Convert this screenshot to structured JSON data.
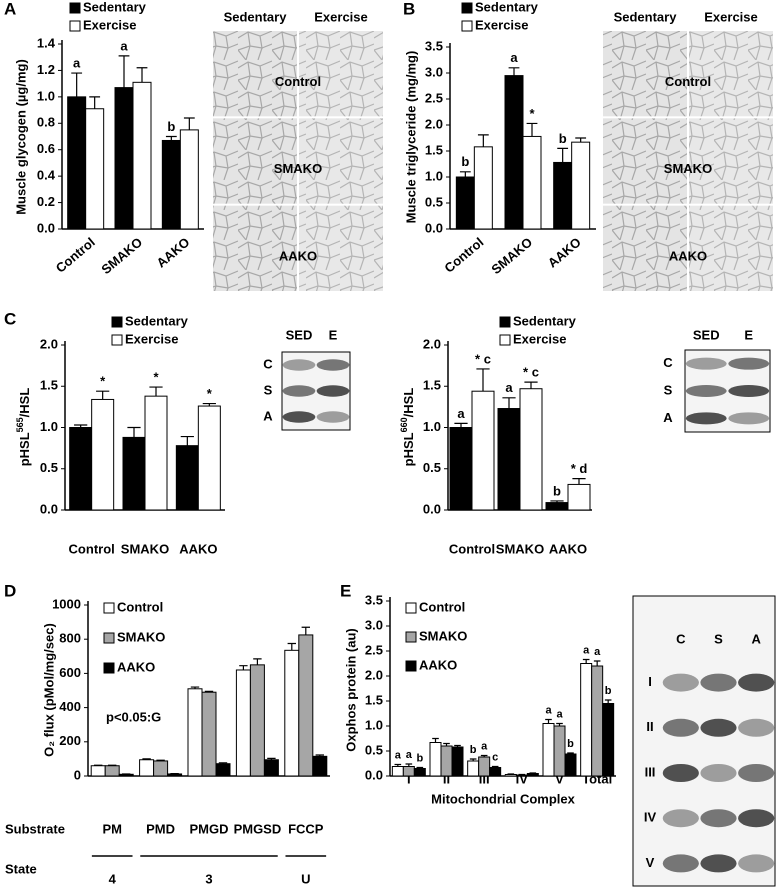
{
  "chart_data": [
    {
      "type": "bar",
      "panel": "A",
      "ylabel": "Muscle glycogen (µg/mg)",
      "categories": [
        "Control",
        "SMAKO",
        "AAKO"
      ],
      "series": [
        {
          "name": "Sedentary",
          "color": "#000000",
          "values": [
            1.0,
            1.07,
            0.67
          ],
          "errors": [
            0.18,
            0.24,
            0.03
          ],
          "annotations": [
            "a",
            "a",
            "b"
          ]
        },
        {
          "name": "Exercise",
          "color": "#ffffff",
          "values": [
            0.91,
            1.11,
            0.75
          ],
          "errors": [
            0.09,
            0.11,
            0.09
          ],
          "annotations": [
            null,
            null,
            null
          ]
        }
      ],
      "ylim": [
        0,
        1.4
      ],
      "yticks": [
        {
          "value": 0,
          "label": "0.0"
        },
        0.2,
        0.4,
        0.6,
        0.8,
        {
          "value": 1,
          "label": "1.0"
        },
        1.2,
        1.4
      ],
      "micrographs": {
        "columns": [
          "Sedentary",
          "Exercise"
        ],
        "rows": [
          "Control",
          "SMAKO",
          "AAKO"
        ]
      }
    },
    {
      "type": "bar",
      "panel": "B",
      "ylabel": "Muscle triglyceride (mg/mg)",
      "categories": [
        "Control",
        "SMAKO",
        "AAKO"
      ],
      "series": [
        {
          "name": "Sedentary",
          "color": "#000000",
          "values": [
            1.0,
            2.95,
            1.28
          ],
          "errors": [
            0.1,
            0.15,
            0.27
          ],
          "annotations": [
            "b",
            "a",
            "b"
          ]
        },
        {
          "name": "Exercise",
          "color": "#ffffff",
          "values": [
            1.58,
            1.78,
            1.67
          ],
          "errors": [
            0.23,
            0.25,
            0.08
          ],
          "annotations": [
            null,
            "*",
            null
          ]
        }
      ],
      "ylim": [
        0,
        3.5
      ],
      "yticks": [
        {
          "value": 0,
          "label": "0.0"
        },
        0.5,
        {
          "value": 1,
          "label": "1.0"
        },
        1.5,
        {
          "value": 2,
          "label": "2.0"
        },
        2.5,
        {
          "value": 3,
          "label": "3.0"
        },
        3.5
      ],
      "micrographs": {
        "columns": [
          "Sedentary",
          "Exercise"
        ],
        "rows": [
          "Control",
          "SMAKO",
          "AAKO"
        ]
      }
    },
    {
      "type": "bar",
      "panel": "C",
      "ylabel": [
        "pHSL",
        "565",
        "/HSL"
      ],
      "categories": [
        "Control",
        "SMAKO",
        "AAKO"
      ],
      "series": [
        {
          "name": "Sedentary",
          "color": "#000000",
          "values": [
            1.0,
            0.88,
            0.78
          ],
          "errors": [
            0.03,
            0.12,
            0.11
          ],
          "annotations": [
            null,
            null,
            null
          ]
        },
        {
          "name": "Exercise",
          "color": "#ffffff",
          "values": [
            1.34,
            1.38,
            1.26
          ],
          "errors": [
            0.1,
            0.11,
            0.03
          ],
          "annotations": [
            "*",
            "*",
            "*"
          ]
        }
      ],
      "ylim": [
        0,
        2
      ],
      "yticks": [
        {
          "value": 0,
          "label": "0.0"
        },
        0.5,
        {
          "value": 1,
          "label": "1.0"
        },
        1.5,
        {
          "value": 2,
          "label": "2.0"
        }
      ],
      "blot": {
        "columns": [
          "SED",
          "E"
        ],
        "rows": [
          "C",
          "S",
          "A"
        ]
      }
    },
    {
      "type": "bar",
      "ylabel": [
        "pHSL",
        "660",
        "/HSL"
      ],
      "categories": [
        "Control",
        "SMAKO",
        "AAKO"
      ],
      "series": [
        {
          "name": "Sedentary",
          "color": "#000000",
          "values": [
            1.0,
            1.23,
            0.09
          ],
          "errors": [
            0.05,
            0.13,
            0.02
          ],
          "annotations": [
            "a",
            "a",
            "b"
          ]
        },
        {
          "name": "Exercise",
          "color": "#ffffff",
          "values": [
            1.44,
            1.47,
            0.31
          ],
          "errors": [
            0.27,
            0.08,
            0.07
          ],
          "annotations": [
            "* c",
            "* c",
            "* d"
          ]
        }
      ],
      "ylim": [
        0,
        2
      ],
      "yticks": [
        {
          "value": 0,
          "label": "0.0"
        },
        0.5,
        {
          "value": 1,
          "label": "1.0"
        },
        1.5,
        {
          "value": 2,
          "label": "2.0"
        }
      ],
      "blot": {
        "columns": [
          "SED",
          "E"
        ],
        "rows": [
          "C",
          "S",
          "A"
        ]
      }
    },
    {
      "type": "bar",
      "panel": "D",
      "ylabel": "O₂ flux (pMol/mg/sec)",
      "categories": [
        "PM",
        "PMD",
        "PMGD",
        "PMGSD",
        "FCCP"
      ],
      "row_label": "Substrate",
      "series": [
        {
          "name": "Control",
          "color": "#ffffff",
          "values": [
            60,
            95,
            510,
            620,
            735
          ],
          "errors": [
            3,
            5,
            10,
            25,
            40
          ]
        },
        {
          "name": "SMAKO",
          "color": "#a6a6a6",
          "values": [
            60,
            88,
            490,
            650,
            825
          ],
          "errors": [
            3,
            4,
            5,
            35,
            45
          ]
        },
        {
          "name": "AAKO",
          "color": "#000000",
          "values": [
            10,
            12,
            72,
            95,
            115
          ],
          "errors": [
            2,
            2,
            5,
            8,
            8
          ]
        }
      ],
      "ylim": [
        0,
        1000
      ],
      "yticks": [
        0,
        200,
        400,
        600,
        800,
        1000
      ],
      "note": "p<0.05:G",
      "state_label": "State",
      "states": [
        "4",
        "3",
        "U"
      ]
    },
    {
      "type": "bar",
      "panel": "E",
      "ylabel": "Oxphos protein (au)",
      "xlabel": "Mitochondrial Complex",
      "categories": [
        "I",
        "II",
        "III",
        "IV",
        "V",
        "Total"
      ],
      "series": [
        {
          "name": "Control",
          "color": "#ffffff",
          "values": [
            0.19,
            0.67,
            0.3,
            0.03,
            1.05,
            2.25
          ],
          "errors": [
            0.04,
            0.08,
            0.04,
            0.01,
            0.08,
            0.08
          ],
          "annotations": [
            "a",
            null,
            "b",
            null,
            "a",
            "a"
          ]
        },
        {
          "name": "SMAKO",
          "color": "#a6a6a6",
          "values": [
            0.19,
            0.6,
            0.38,
            0.02,
            1.0,
            2.2
          ],
          "errors": [
            0.05,
            0.05,
            0.03,
            0.01,
            0.05,
            0.1
          ],
          "annotations": [
            "a",
            null,
            "a",
            null,
            "a",
            "a"
          ]
        },
        {
          "name": "AAKO",
          "color": "#000000",
          "values": [
            0.15,
            0.58,
            0.17,
            0.05,
            0.44,
            1.45
          ],
          "errors": [
            0.02,
            0.03,
            0.02,
            0.01,
            0.02,
            0.07
          ],
          "annotations": [
            "b",
            null,
            "c",
            null,
            "b",
            "b"
          ]
        }
      ],
      "ylim": [
        0,
        3.5
      ],
      "yticks": [
        {
          "value": 0,
          "label": "0.0"
        },
        0.5,
        {
          "value": 1,
          "label": "1.0"
        },
        1.5,
        {
          "value": 2,
          "label": "2.0"
        },
        2.5,
        {
          "value": 3,
          "label": "3.0"
        },
        3.5
      ],
      "blot": {
        "columns": [
          "C",
          "S",
          "A"
        ],
        "rows": [
          "I",
          "II",
          "III",
          "IV",
          "V"
        ]
      }
    }
  ]
}
